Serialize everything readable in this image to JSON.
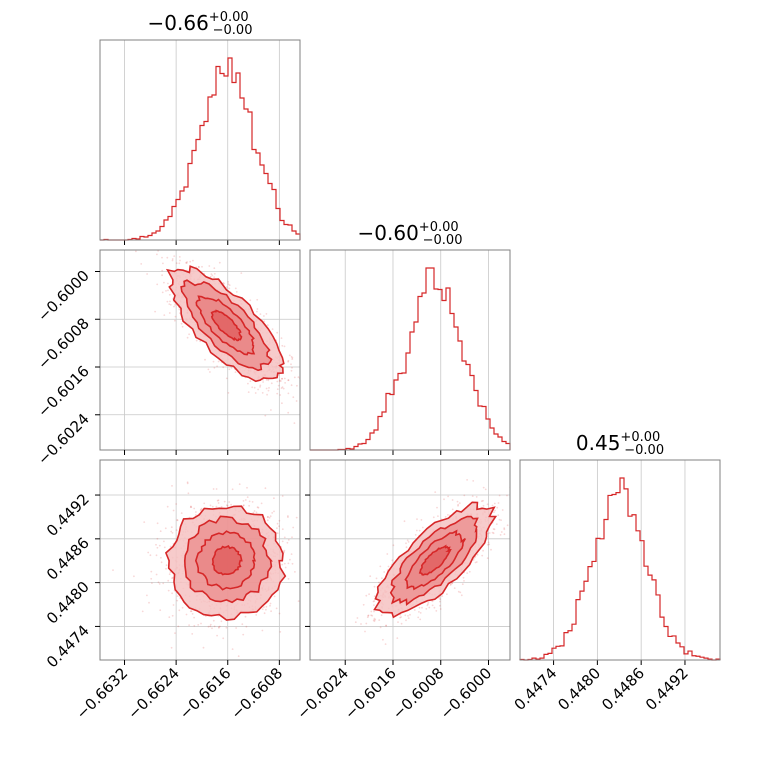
{
  "colors": {
    "accent": "#d62728",
    "fill_outer": "#f6c2c2",
    "fill_inner": "#e98686",
    "grid": "#c8c8c8",
    "frame": "#808080"
  },
  "chart_data": {
    "type": "corner",
    "grid": true,
    "parameters": [
      {
        "title": {
          "median": "−0.66",
          "plus": "+0.00",
          "minus": "−0.00"
        },
        "range": [
          -0.66358,
          -0.66048
        ],
        "ticks": [
          -0.6632,
          -0.6624,
          -0.6616,
          -0.6608
        ],
        "tick_labels": [
          "−0.6632",
          "−0.6624",
          "−0.6616",
          "−0.6608"
        ],
        "center": -0.66162,
        "sigma": 0.00044
      },
      {
        "title": {
          "median": "−0.60",
          "plus": "+0.00",
          "minus": "−0.00"
        },
        "range": [
          -0.60299,
          -0.59964
        ],
        "ticks": [
          -0.6024,
          -0.6016,
          -0.6008,
          -0.6
        ],
        "tick_labels": [
          "−0.6024",
          "−0.6016",
          "−0.6008",
          "−0.6000"
        ],
        "center": -0.6009,
        "sigma": 0.00048
      },
      {
        "title": {
          "median": "0.45",
          "plus": "+0.00",
          "minus": "−0.00"
        },
        "range": [
          0.44694,
          0.44968
        ],
        "ticks": [
          0.4474,
          0.448,
          0.4486,
          0.4492
        ],
        "tick_labels": [
          "0.4474",
          "0.4480",
          "0.4486",
          "0.4492"
        ],
        "center": 0.4483,
        "sigma": 0.00038
      }
    ],
    "correlations": {
      "0_1": -0.75,
      "0_2": 0.0,
      "1_2": 0.75
    }
  }
}
